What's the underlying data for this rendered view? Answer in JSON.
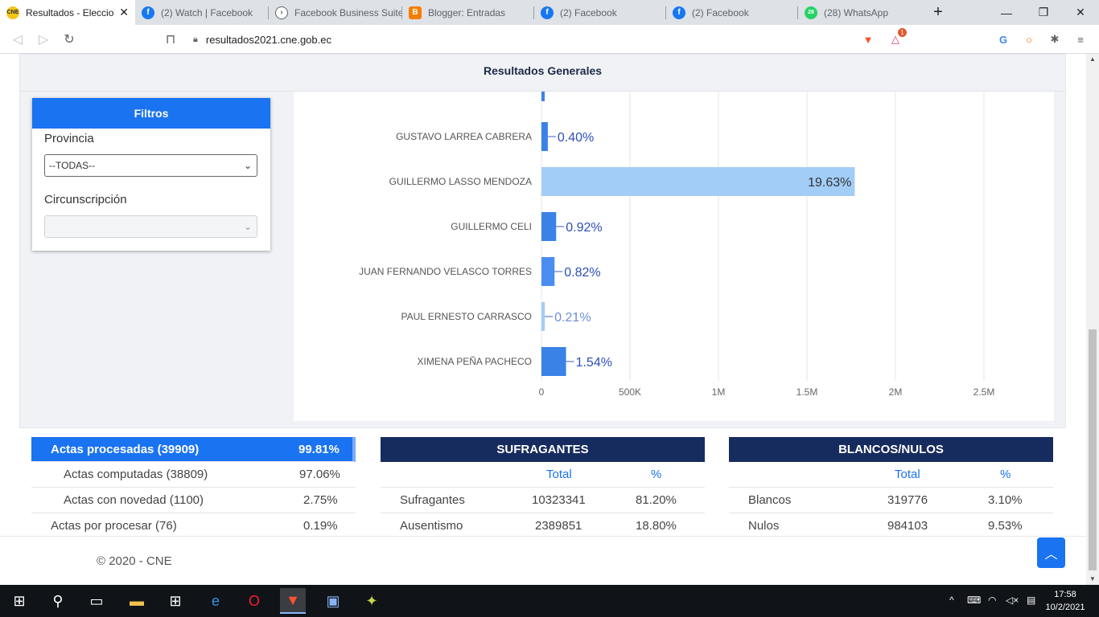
{
  "browser": {
    "tabs": [
      {
        "title": "Resultados - Eleccio",
        "active": true,
        "icon": "cne-icon",
        "icon_color": "#f5c518"
      },
      {
        "title": "(2) Watch | Facebook",
        "active": false,
        "icon": "facebook-icon",
        "icon_color": "#1877f2"
      },
      {
        "title": "Facebook Business Suite",
        "active": false,
        "icon": "business-suite-icon",
        "icon_color": "#5f6368"
      },
      {
        "title": "Blogger: Entradas",
        "active": false,
        "icon": "blogger-icon",
        "icon_color": "#f57d00"
      },
      {
        "title": "(2) Facebook",
        "active": false,
        "icon": "facebook-icon",
        "icon_color": "#1877f2"
      },
      {
        "title": "(2) Facebook",
        "active": false,
        "icon": "facebook-icon",
        "icon_color": "#1877f2"
      },
      {
        "title": "(28) WhatsApp",
        "active": false,
        "icon": "whatsapp-icon",
        "icon_color": "#25d366"
      }
    ],
    "url": "resultados2021.cne.gob.ec",
    "notification_badge": "1"
  },
  "page": {
    "section_title": "Resultados Generales",
    "filters": {
      "header": "Filtros",
      "province_label": "Provincia",
      "province_value": "--TODAS--",
      "district_label": "Circunscripción",
      "district_value": ""
    },
    "footer": "© 2020 - CNE"
  },
  "chart_data": {
    "type": "bar",
    "orientation": "horizontal",
    "categories": [
      "GUSTAVO LARREA CABRERA",
      "GUILLERMO LASSO MENDOZA",
      "GUILLERMO CELI",
      "JUAN FERNANDO VELASCO TORRES",
      "PAUL ERNESTO CARRASCO",
      "XIMENA PEÑA PACHECO"
    ],
    "values": [
      36000,
      1770000,
      83000,
      74000,
      19000,
      139000
    ],
    "data_labels": [
      "0.40%",
      "19.63%",
      "0.92%",
      "0.82%",
      "0.21%",
      "1.54%"
    ],
    "colors": [
      "#3b82e6",
      "#a2cdf7",
      "#3b82e6",
      "#4a8df0",
      "#a2cdf7",
      "#3b82e6"
    ],
    "x_ticks": [
      "0",
      "500K",
      "1M",
      "1.5M",
      "2M",
      "2.5M"
    ],
    "x_tick_values": [
      0,
      500000,
      1000000,
      1500000,
      2000000,
      2500000
    ],
    "xlim": [
      0,
      3000000
    ],
    "grid": true
  },
  "actas": {
    "rows": [
      {
        "label": "Actas procesadas (39909)",
        "value": "99.81%"
      },
      {
        "label": "Actas computadas (38809)",
        "value": "97.06%"
      },
      {
        "label": "Actas con novedad (1100)",
        "value": "2.75%"
      },
      {
        "label": "Actas por procesar (76)",
        "value": "0.19%"
      }
    ]
  },
  "sufragantes": {
    "title": "SUFRAGANTES",
    "col_total": "Total",
    "col_pct": "%",
    "rows": [
      {
        "label": "Sufragantes",
        "total": "10323341",
        "pct": "81.20%"
      },
      {
        "label": "Ausentismo",
        "total": "2389851",
        "pct": "18.80%"
      }
    ]
  },
  "blancos": {
    "title": "BLANCOS/NULOS",
    "col_total": "Total",
    "col_pct": "%",
    "rows": [
      {
        "label": "Blancos",
        "total": "319776",
        "pct": "3.10%"
      },
      {
        "label": "Nulos",
        "total": "984103",
        "pct": "9.53%"
      }
    ]
  },
  "taskbar": {
    "time": "17:58",
    "date": "10/2/2021"
  }
}
